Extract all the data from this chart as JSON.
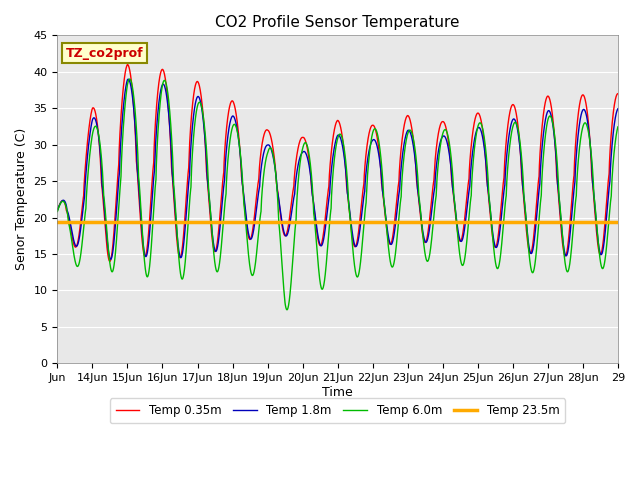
{
  "title": "CO2 Profile Sensor Temperature",
  "ylabel": "Senor Temperature (C)",
  "xlabel": "Time",
  "legend_label": "TZ_co2prof",
  "ylim": [
    0,
    45
  ],
  "x_tick_labels": [
    "Jun",
    "14Jun",
    "15Jun",
    "16Jun",
    "17Jun",
    "18Jun",
    "19Jun",
    "20Jun",
    "21Jun",
    "22Jun",
    "23Jun",
    "24Jun",
    "25Jun",
    "26Jun",
    "27Jun",
    "28Jun",
    "29"
  ],
  "flat_line_value": 19.4,
  "line_colors": {
    "shallow": "#ff0000",
    "mid": "#0000bb",
    "deep": "#00bb00",
    "flat": "#ffaa00"
  },
  "legend_labels": [
    "Temp 0.35m",
    "Temp 1.8m",
    "Temp 6.0m",
    "Temp 23.5m"
  ],
  "facecolor": "#e8e8e8",
  "title_fontsize": 11,
  "label_fontsize": 9,
  "tick_fontsize": 8
}
